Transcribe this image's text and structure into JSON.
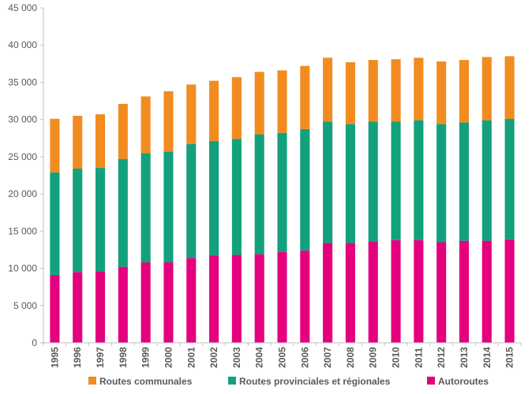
{
  "chart_data": {
    "type": "bar",
    "stacked": true,
    "categories": [
      "1995",
      "1996",
      "1997",
      "1998",
      "1999",
      "2000",
      "2001",
      "2002",
      "2003",
      "2004",
      "2005",
      "2006",
      "2007",
      "2008",
      "2009",
      "2010",
      "2011",
      "2012",
      "2013",
      "2014",
      "2015"
    ],
    "series": [
      {
        "name": "Autoroutes",
        "color": "#e5007e",
        "values": [
          9100,
          9500,
          9600,
          10200,
          10800,
          10800,
          11400,
          11700,
          11800,
          11900,
          12200,
          12400,
          13400,
          13400,
          13600,
          13800,
          13800,
          13500,
          13700,
          13700,
          13900
        ]
      },
      {
        "name": "Routes provinciales et régionales",
        "color": "#12a17c",
        "values": [
          13800,
          13900,
          13900,
          14500,
          14700,
          14900,
          15300,
          15400,
          15600,
          16100,
          16000,
          16300,
          16300,
          16000,
          16100,
          15900,
          16100,
          15900,
          15900,
          16200,
          16200
        ]
      },
      {
        "name": "Routes communales",
        "color": "#f28c21",
        "values": [
          7200,
          7100,
          7200,
          7400,
          7600,
          8100,
          8000,
          8100,
          8300,
          8400,
          8400,
          8500,
          8600,
          8300,
          8300,
          8400,
          8400,
          8400,
          8400,
          8500,
          8400
        ]
      }
    ],
    "legend_order": [
      "Routes communales",
      "Routes provinciales et régionales",
      "Autoroutes"
    ],
    "y_ticks": [
      "0",
      "5 000",
      "10 000",
      "15 000",
      "20 000",
      "25 000",
      "30 000",
      "35 000",
      "40 000",
      "45 000"
    ],
    "ylim": [
      0,
      45000
    ],
    "grid": false,
    "legend_position": "bottom"
  }
}
